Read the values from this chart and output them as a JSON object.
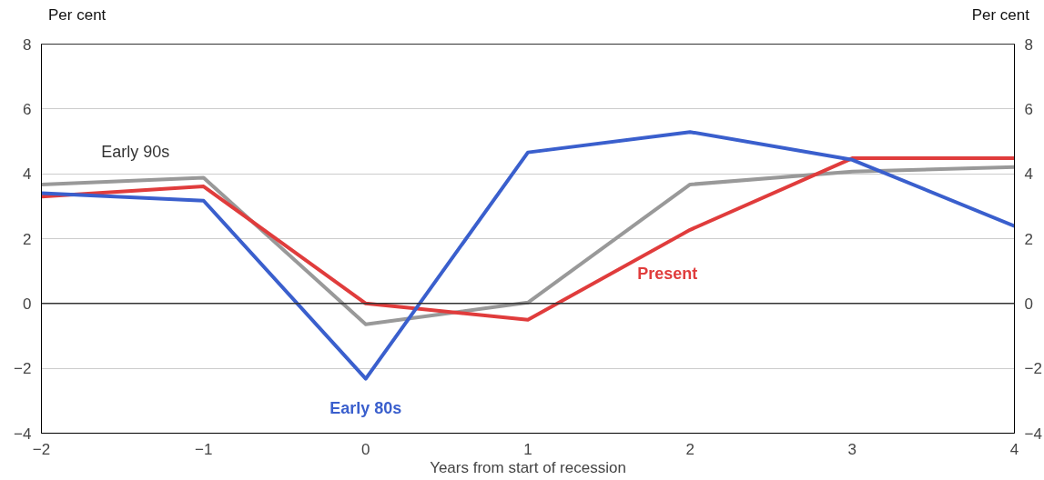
{
  "chart_data": {
    "type": "line",
    "xlabel": "Years from start of recession",
    "ylabel": "Per cent",
    "y2label": "Per cent",
    "x": [
      -2,
      -1,
      0,
      1,
      2,
      3,
      4
    ],
    "series": [
      {
        "name": "Early 90s",
        "color": "#999999",
        "values": [
          3.67,
          3.88,
          -0.64,
          0.03,
          3.67,
          4.07,
          4.21
        ]
      },
      {
        "name": "Present",
        "color": "#e03c3c",
        "values": [
          3.3,
          3.61,
          0,
          -0.5,
          2.27,
          4.48,
          4.48
        ]
      },
      {
        "name": "Early 80s",
        "color": "#3a5fcd",
        "values": [
          3.4,
          3.17,
          -2.32,
          4.66,
          5.29,
          4.43,
          2.39
        ]
      }
    ],
    "xlim": [
      -2,
      4
    ],
    "xticks": [
      -2,
      -1,
      0,
      1,
      2,
      3,
      4
    ],
    "ylim": [
      -4,
      8
    ],
    "yticks": [
      -4,
      -2,
      0,
      2,
      4,
      6,
      8
    ],
    "y2lim": [
      -4,
      8
    ],
    "y2ticks": [
      -4,
      -2,
      0,
      2,
      4,
      6,
      8
    ],
    "ref_lines": [
      {
        "axis": "y",
        "value": 0,
        "color": "#333333"
      }
    ],
    "grid": "y",
    "marker": "none",
    "line_style": "solid"
  }
}
